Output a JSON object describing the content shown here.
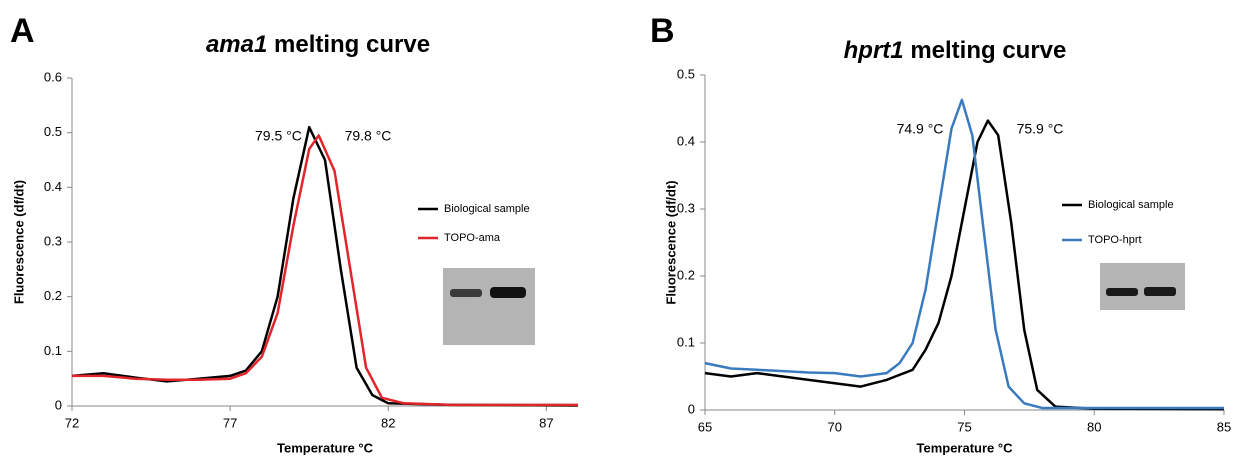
{
  "chart_data": [
    {
      "type": "line",
      "panel": "A",
      "title": [
        "ama1",
        "melting curve"
      ],
      "x_label": "Temperature °C",
      "y_label": "Fluorescence (df/dt)",
      "xlim": [
        72,
        88
      ],
      "xticks": [
        72,
        77,
        82,
        87
      ],
      "ylim": [
        0,
        0.6
      ],
      "yticks": [
        0,
        0.1,
        0.2,
        0.3,
        0.4,
        0.5,
        0.6
      ],
      "annotations": [
        "79.5 °C",
        "79.8 °C"
      ],
      "series": [
        {
          "name": "Biological sample",
          "color": "#000000",
          "x": [
            72,
            73,
            74,
            75,
            76,
            77,
            77.5,
            78,
            78.5,
            79,
            79.5,
            80,
            80.5,
            81,
            81.5,
            82,
            84,
            88
          ],
          "values": [
            0.055,
            0.06,
            0.052,
            0.045,
            0.05,
            0.055,
            0.065,
            0.1,
            0.2,
            0.38,
            0.51,
            0.45,
            0.25,
            0.07,
            0.02,
            0.005,
            0.002,
            0.001
          ]
        },
        {
          "name": "TOPO-ama",
          "color": "#e0252b",
          "x": [
            72,
            73,
            74,
            75,
            76,
            77,
            77.5,
            78,
            78.5,
            79,
            79.5,
            79.8,
            80.3,
            80.8,
            81.3,
            81.8,
            82.5,
            84,
            88
          ],
          "values": [
            0.055,
            0.055,
            0.05,
            0.048,
            0.048,
            0.05,
            0.06,
            0.09,
            0.17,
            0.33,
            0.47,
            0.495,
            0.43,
            0.25,
            0.07,
            0.015,
            0.005,
            0.002,
            0.002
          ]
        }
      ]
    },
    {
      "type": "line",
      "panel": "B",
      "title": [
        "hprt1",
        "melting curve"
      ],
      "x_label": "Temperature °C",
      "y_label": "Fluorescence (df/dt)",
      "xlim": [
        65,
        85
      ],
      "xticks": [
        65,
        70,
        75,
        80,
        85
      ],
      "ylim": [
        0,
        0.5
      ],
      "yticks": [
        0,
        0.1,
        0.2,
        0.3,
        0.4,
        0.5
      ],
      "annotations": [
        "74.9 °C",
        "75.9 °C"
      ],
      "series": [
        {
          "name": "Biological sample",
          "color": "#000000",
          "x": [
            65,
            66,
            67,
            68,
            69,
            70,
            71,
            72,
            73,
            73.5,
            74,
            74.5,
            75,
            75.5,
            75.9,
            76.3,
            76.8,
            77.3,
            77.8,
            78.5,
            80,
            85
          ],
          "values": [
            0.055,
            0.05,
            0.055,
            0.05,
            0.045,
            0.04,
            0.035,
            0.045,
            0.06,
            0.09,
            0.13,
            0.2,
            0.3,
            0.4,
            0.432,
            0.41,
            0.28,
            0.12,
            0.03,
            0.005,
            0.002,
            0.001
          ]
        },
        {
          "name": "TOPO-hprt",
          "color": "#3a7bbf",
          "x": [
            65,
            66,
            67,
            68,
            69,
            70,
            71,
            72,
            72.5,
            73,
            73.5,
            74,
            74.5,
            74.9,
            75.3,
            75.7,
            76.2,
            76.7,
            77.3,
            78,
            85
          ],
          "values": [
            0.07,
            0.062,
            0.06,
            0.058,
            0.056,
            0.055,
            0.05,
            0.055,
            0.07,
            0.1,
            0.18,
            0.3,
            0.42,
            0.463,
            0.41,
            0.28,
            0.12,
            0.035,
            0.01,
            0.003,
            0.003
          ]
        }
      ]
    }
  ]
}
